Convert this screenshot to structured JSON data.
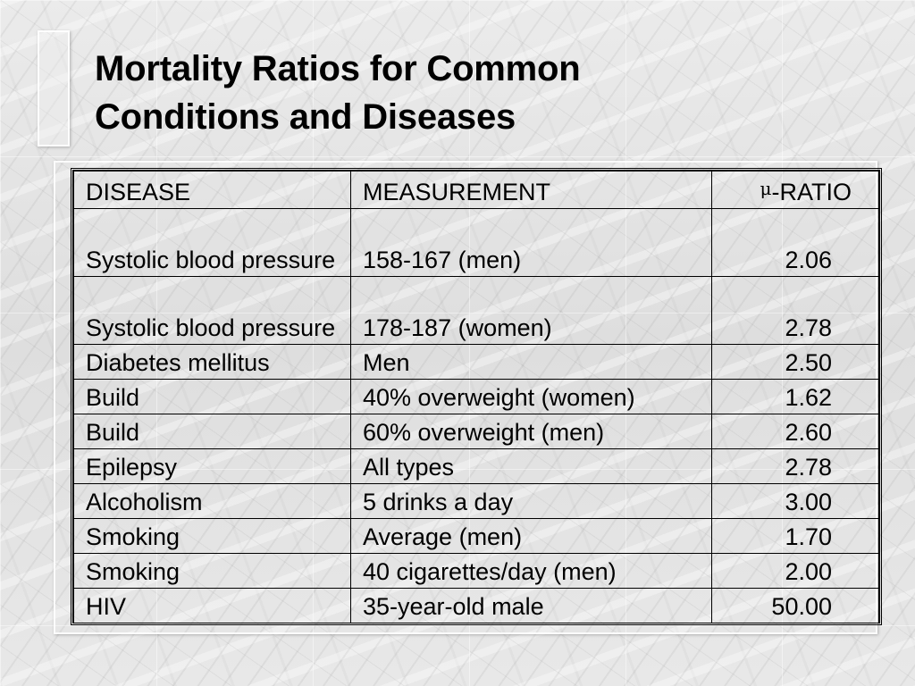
{
  "slide": {
    "title_line1": "Mortality Ratios for Common",
    "title_line2": "Conditions and Diseases"
  },
  "table": {
    "headers": {
      "disease": "DISEASE",
      "measurement": "MEASUREMENT",
      "ratio_symbol": "μ",
      "ratio_label": "-RATIO"
    },
    "rows": [
      {
        "disease": "Systolic blood pressure",
        "measurement": "158-167 (men)",
        "ratio": "2.06"
      },
      {
        "disease": "Systolic blood pressure",
        "measurement": "178-187 (women)",
        "ratio": "2.78"
      },
      {
        "disease": "Diabetes mellitus",
        "measurement": "Men",
        "ratio": "2.50"
      },
      {
        "disease": "Build",
        "measurement": "40% overweight (women)",
        "ratio": "1.62"
      },
      {
        "disease": "Build",
        "measurement": "60% overweight (men)",
        "ratio": "2.60"
      },
      {
        "disease": "Epilepsy",
        "measurement": "All types",
        "ratio": "2.78"
      },
      {
        "disease": "Alcoholism",
        "measurement": "5 drinks a day",
        "ratio": "3.00"
      },
      {
        "disease": "Smoking",
        "measurement": "Average (men)",
        "ratio": "1.70"
      },
      {
        "disease": "Smoking",
        "measurement": "40 cigarettes/day (men)",
        "ratio": "2.00"
      },
      {
        "disease": "HIV",
        "measurement": "35-year-old male",
        "ratio": "50.00"
      }
    ]
  }
}
